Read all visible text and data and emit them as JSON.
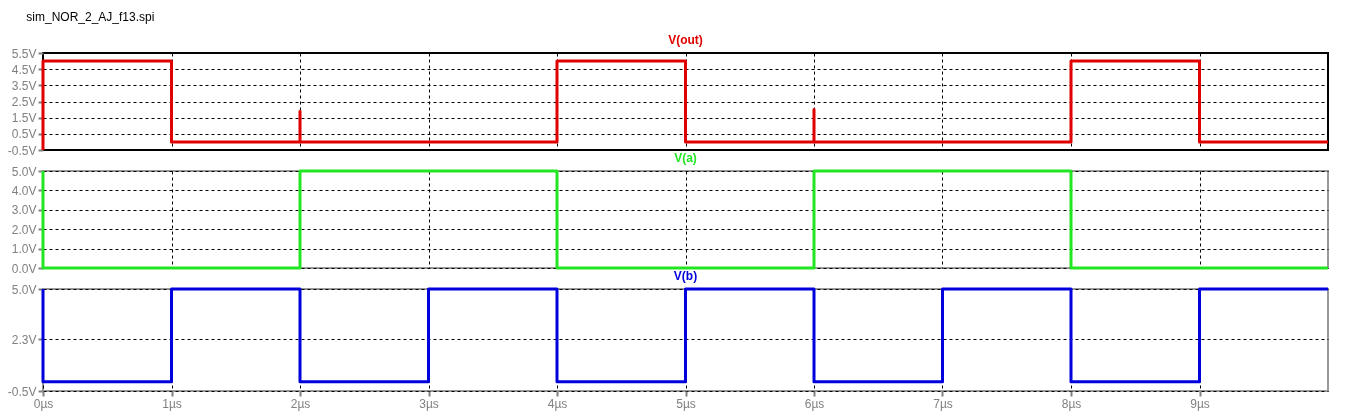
{
  "chart_data": [
    {
      "type": "line",
      "title": "V(out)",
      "annotations": [
        "sim_NOR_2_AJ_f13.spi"
      ],
      "x": [
        0,
        0,
        1,
        1,
        2,
        2,
        2,
        4,
        4,
        5,
        5,
        6,
        6,
        6,
        8,
        8,
        9,
        9,
        10
      ],
      "values": [
        -0.5,
        5,
        5,
        0,
        0,
        1.9,
        0,
        0,
        5,
        5,
        0,
        0,
        2.0,
        0,
        0,
        5,
        5,
        0,
        0
      ],
      "color": "#e00000",
      "xlim": [
        0,
        10
      ],
      "xticks": [
        0,
        1,
        2,
        3,
        4,
        5,
        6,
        7,
        8,
        9
      ],
      "ylim": [
        -0.5,
        5.5
      ],
      "yticks": [
        {
          "value": 5.5,
          "label": "5.5V"
        },
        {
          "value": 4.5,
          "label": "4.5V"
        },
        {
          "value": 3.5,
          "label": "3.5V"
        },
        {
          "value": 2.5,
          "label": "2.5V"
        },
        {
          "value": 1.5,
          "label": "1.5V"
        },
        {
          "value": 0.5,
          "label": "0.5V"
        },
        {
          "value": -0.5,
          "label": "-0.5V"
        }
      ],
      "grid": true,
      "tick_labels": "y",
      "line_style": "solid"
    },
    {
      "type": "line",
      "title": "V(a)",
      "x": [
        0,
        0,
        2,
        2,
        4,
        4,
        6,
        6,
        8,
        8,
        10
      ],
      "values": [
        5,
        0,
        0,
        5,
        5,
        0,
        0,
        5,
        5,
        0,
        0
      ],
      "color": "#22e622",
      "xlim": [
        0,
        10
      ],
      "xticks": [
        0,
        1,
        2,
        3,
        4,
        5,
        6,
        7,
        8,
        9
      ],
      "ylim": [
        0,
        5
      ],
      "yticks": [
        {
          "value": 5,
          "label": "5.0V"
        },
        {
          "value": 4,
          "label": "4.0V"
        },
        {
          "value": 3,
          "label": "3.0V"
        },
        {
          "value": 2,
          "label": "2.0V"
        },
        {
          "value": 1,
          "label": "1.0V"
        },
        {
          "value": 0,
          "label": "0.0V"
        }
      ],
      "grid": true,
      "tick_labels": "y",
      "line_style": "solid"
    },
    {
      "type": "line",
      "title": "V(b)",
      "x": [
        0,
        0,
        1,
        1,
        2,
        2,
        3,
        3,
        4,
        4,
        5,
        5,
        6,
        6,
        7,
        7,
        8,
        8,
        9,
        9,
        10
      ],
      "values": [
        5,
        0,
        0,
        5,
        5,
        0,
        0,
        5,
        5,
        0,
        0,
        5,
        5,
        0,
        0,
        5,
        5,
        0,
        0,
        5,
        5
      ],
      "color": "#0000dd",
      "xlim": [
        0,
        10
      ],
      "xticks": [
        {
          "value": 0,
          "label": "0µs"
        },
        {
          "value": 1,
          "label": "1µs"
        },
        {
          "value": 2,
          "label": "2µs"
        },
        {
          "value": 3,
          "label": "3µs"
        },
        {
          "value": 4,
          "label": "4µs"
        },
        {
          "value": 5,
          "label": "5µs"
        },
        {
          "value": 6,
          "label": "6µs"
        },
        {
          "value": 7,
          "label": "7µs"
        },
        {
          "value": 8,
          "label": "8µs"
        },
        {
          "value": 9,
          "label": "9µs"
        }
      ],
      "ylim": [
        -0.5,
        5
      ],
      "yticks": [
        {
          "value": 5,
          "label": "5.0V"
        },
        {
          "value": 2.3,
          "label": "2.3V"
        },
        {
          "value": -0.5,
          "label": "-0.5V"
        }
      ],
      "grid": true,
      "line_style": "solid"
    }
  ]
}
